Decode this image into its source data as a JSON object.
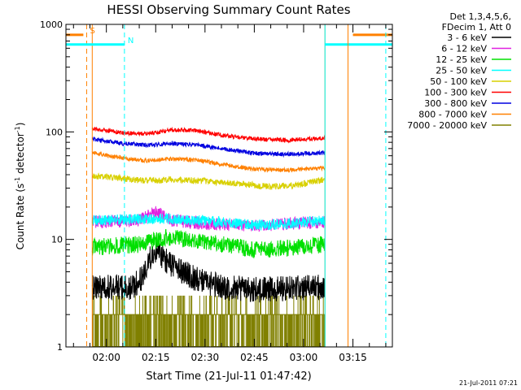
{
  "chart_data": {
    "type": "line",
    "title": "HESSI Observing Summary Count Rates",
    "xlabel": "Start Time (21-Jul-11 01:47:42)",
    "ylabel_parts": {
      "main": "Count Rate (s",
      "sup1": "-1",
      "mid": " detector",
      "sup2": "-1",
      "end": ")"
    },
    "y_scale": "log",
    "ylim": [
      1,
      1000
    ],
    "y_ticks": [
      {
        "value": 1,
        "label": "1"
      },
      {
        "value": 10,
        "label": "10"
      },
      {
        "value": 100,
        "label": "100"
      },
      {
        "value": 1000,
        "label": "1000"
      }
    ],
    "xlim": [
      "01:47:42",
      "03:27:00"
    ],
    "x_ticks": [
      {
        "time": "02:00",
        "label": "02:00"
      },
      {
        "time": "02:15",
        "label": "02:15"
      },
      {
        "time": "02:30",
        "label": "02:30"
      },
      {
        "time": "02:45",
        "label": "02:45"
      },
      {
        "time": "03:00",
        "label": "03:00"
      },
      {
        "time": "03:15",
        "label": "03:15"
      }
    ],
    "legend": {
      "position": "right, outside",
      "header": [
        "Det 1,3,4,5,6,",
        "FDecim 1, Att 0"
      ]
    },
    "series": [
      {
        "name": "3 - 6 keV",
        "color": "#000000",
        "noise": 0.12,
        "points": [
          [
            "01:55:42",
            3.6
          ],
          [
            "02:08:00",
            3.6
          ],
          [
            "02:11:00",
            4.5
          ],
          [
            "02:13:00",
            6.5
          ],
          [
            "02:15:00",
            8.0
          ],
          [
            "02:17:00",
            7.0
          ],
          [
            "02:19:00",
            6.0
          ],
          [
            "02:23:00",
            5.0
          ],
          [
            "02:28:00",
            4.2
          ],
          [
            "02:35:00",
            3.6
          ],
          [
            "02:45:00",
            3.4
          ],
          [
            "02:55:00",
            3.5
          ],
          [
            "03:06:30",
            3.6
          ]
        ]
      },
      {
        "name": "6 - 12 keV",
        "color": "#e020e0",
        "noise": 0.06,
        "points": [
          [
            "01:55:42",
            14.5
          ],
          [
            "02:10:00",
            15.0
          ],
          [
            "02:15:00",
            18.0
          ],
          [
            "02:17:00",
            17.0
          ],
          [
            "02:20:00",
            15.0
          ],
          [
            "02:30:00",
            14.0
          ],
          [
            "02:45:00",
            13.5
          ],
          [
            "02:55:00",
            14.0
          ],
          [
            "03:06:30",
            14.5
          ]
        ]
      },
      {
        "name": "12 - 25 keV",
        "color": "#00e000",
        "noise": 0.08,
        "points": [
          [
            "01:55:42",
            8.5
          ],
          [
            "02:10:00",
            9.0
          ],
          [
            "02:18:00",
            10.5
          ],
          [
            "02:25:00",
            10.0
          ],
          [
            "02:35:00",
            9.0
          ],
          [
            "02:45:00",
            8.0
          ],
          [
            "02:55:00",
            8.3
          ],
          [
            "03:06:30",
            9.0
          ]
        ]
      },
      {
        "name": "25 - 50 keV",
        "color": "#00ffff",
        "noise": 0.05,
        "points": [
          [
            "01:55:42",
            15.0
          ],
          [
            "02:10:00",
            15.5
          ],
          [
            "02:20:00",
            15.5
          ],
          [
            "02:35:00",
            14.5
          ],
          [
            "02:45:00",
            13.5
          ],
          [
            "02:55:00",
            14.0
          ],
          [
            "03:06:30",
            15.0
          ]
        ]
      },
      {
        "name": "50 - 100 keV",
        "color": "#d8d000",
        "noise": 0.03,
        "points": [
          [
            "01:55:42",
            39.0
          ],
          [
            "02:05:00",
            37.0
          ],
          [
            "02:12:00",
            35.0
          ],
          [
            "02:20:00",
            36.0
          ],
          [
            "02:30:00",
            35.0
          ],
          [
            "02:40:00",
            33.0
          ],
          [
            "02:50:00",
            31.0
          ],
          [
            "02:58:00",
            32.0
          ],
          [
            "03:06:30",
            36.0
          ]
        ]
      },
      {
        "name": "100 - 300 keV",
        "color": "#ff0000",
        "noise": 0.02,
        "points": [
          [
            "01:55:42",
            108.0
          ],
          [
            "02:05:00",
            98.0
          ],
          [
            "02:12:00",
            96.0
          ],
          [
            "02:20:00",
            104.0
          ],
          [
            "02:27:00",
            103.0
          ],
          [
            "02:35:00",
            93.0
          ],
          [
            "02:45:00",
            86.0
          ],
          [
            "02:55:00",
            84.0
          ],
          [
            "03:06:30",
            88.0
          ]
        ]
      },
      {
        "name": "300 - 800 keV",
        "color": "#0000e0",
        "noise": 0.02,
        "points": [
          [
            "01:55:42",
            86.0
          ],
          [
            "02:05:00",
            78.0
          ],
          [
            "02:12:00",
            75.0
          ],
          [
            "02:20:00",
            78.0
          ],
          [
            "02:27:00",
            76.0
          ],
          [
            "02:35:00",
            70.0
          ],
          [
            "02:45:00",
            63.0
          ],
          [
            "02:55:00",
            62.0
          ],
          [
            "03:06:30",
            64.0
          ]
        ]
      },
      {
        "name": "800 - 7000 keV",
        "color": "#ff8000",
        "noise": 0.02,
        "points": [
          [
            "01:55:42",
            64.0
          ],
          [
            "02:05:00",
            57.0
          ],
          [
            "02:12:00",
            54.0
          ],
          [
            "02:20:00",
            56.0
          ],
          [
            "02:27:00",
            55.0
          ],
          [
            "02:35:00",
            50.0
          ],
          [
            "02:45:00",
            45.0
          ],
          [
            "02:55:00",
            44.0
          ],
          [
            "03:06:30",
            46.0
          ]
        ]
      },
      {
        "name": "7000 - 20000 keV",
        "color": "#808000",
        "noise": 0,
        "points": [
          [
            "01:55:42",
            2.0
          ],
          [
            "03:06:30",
            2.0
          ]
        ]
      }
    ],
    "orange_boxes": [
      {
        "start": "01:47:42",
        "end": "01:55:42",
        "level": 1000
      },
      {
        "start": "03:06:30",
        "end": "03:27:00",
        "level": 1000
      }
    ],
    "annotations": [
      {
        "label": "S",
        "time": "01:54:00",
        "color": "#ff8000",
        "bar_start": "01:47:42",
        "bar_end": "01:53:00",
        "bar_level": 800,
        "line_style": "dashed"
      },
      {
        "label": "N",
        "time": "02:05:30",
        "color": "#00ffff",
        "bar_start": "01:47:42",
        "bar_end": "02:05:30",
        "bar_level": 650,
        "line_style": "dashed"
      },
      {
        "label": "",
        "time": "03:06:30",
        "color": "#00ffff",
        "bar_start": "03:06:30",
        "bar_end": "03:27:00",
        "bar_level": 650,
        "line_style": "solid"
      },
      {
        "label": "",
        "time": "03:13:30",
        "color": "#ff8000",
        "bar_start": "03:15:00",
        "bar_end": "03:27:00",
        "bar_level": 800,
        "line_style": "solid"
      },
      {
        "label": "",
        "time": "03:25:00",
        "color": "#00ffff",
        "bar_start": "",
        "bar_end": "",
        "bar_level": 0,
        "line_style": "dashed"
      }
    ],
    "footer_date": "21-Jul-2011 07:21"
  }
}
